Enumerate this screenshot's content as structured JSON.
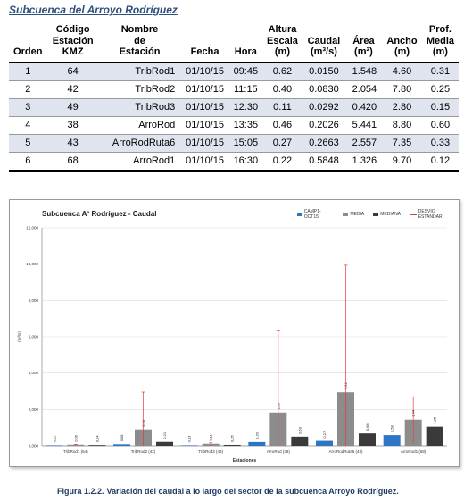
{
  "section_title": "Subcuenca del Arroyo Rodríguez",
  "table": {
    "headers": {
      "orden": "Orden",
      "codigo": [
        "Código",
        "Estación",
        "KMZ"
      ],
      "nombre": [
        "Nombre",
        "de",
        "Estación"
      ],
      "fecha": "Fecha",
      "hora": "Hora",
      "altura": [
        "Altura",
        "Escala",
        "(m)"
      ],
      "caudal": [
        "Caudal",
        "(m³/s)"
      ],
      "area": [
        "Área",
        "(m²)"
      ],
      "ancho": [
        "Ancho",
        "(m)"
      ],
      "prof": [
        "Prof.",
        "Media",
        "(m)"
      ]
    },
    "rows": [
      {
        "orden": "1",
        "codigo": "64",
        "nombre": "TribRod1",
        "fecha": "01/10/15",
        "hora": "09:45",
        "altura": "0.62",
        "caudal": "0.0150",
        "area": "1.548",
        "ancho": "4.60",
        "prof": "0.31"
      },
      {
        "orden": "2",
        "codigo": "42",
        "nombre": "TribRod2",
        "fecha": "01/10/15",
        "hora": "11:15",
        "altura": "0.40",
        "caudal": "0.0830",
        "area": "2.054",
        "ancho": "7.80",
        "prof": "0.25"
      },
      {
        "orden": "3",
        "codigo": "49",
        "nombre": "TribRod3",
        "fecha": "01/10/15",
        "hora": "12:30",
        "altura": "0.11",
        "caudal": "0.0292",
        "area": "0.420",
        "ancho": "2.80",
        "prof": "0.15"
      },
      {
        "orden": "4",
        "codigo": "38",
        "nombre": "ArroRod",
        "fecha": "01/10/15",
        "hora": "13:35",
        "altura": "0.46",
        "caudal": "0.2026",
        "area": "5.441",
        "ancho": "8.80",
        "prof": "0.60"
      },
      {
        "orden": "5",
        "codigo": "43",
        "nombre": "ArroRodRuta6",
        "fecha": "01/10/15",
        "hora": "15:05",
        "altura": "0.27",
        "caudal": "0.2663",
        "area": "2.557",
        "ancho": "7.35",
        "prof": "0.33"
      },
      {
        "orden": "6",
        "codigo": "68",
        "nombre": "ArroRod1",
        "fecha": "01/10/15",
        "hora": "16:30",
        "altura": "0.22",
        "caudal": "0.5848",
        "area": "1.326",
        "ancho": "9.70",
        "prof": "0.12"
      }
    ]
  },
  "chart_data": {
    "type": "bar",
    "title": "Subcuenca Aº Rodríguez - Caudal",
    "xlabel": "Estaciones",
    "ylabel": "(m³/s)",
    "ylim": [
      0,
      12
    ],
    "yticks": [
      "0,000",
      "2,000",
      "4,000",
      "6,000",
      "8,000",
      "10,000",
      "12,000"
    ],
    "grid": true,
    "legend_position": "top-right",
    "categories": [
      "TribRod1 (64)",
      "TribRod2 (42)",
      "TribRod3 (49)",
      "ArroRod (38)",
      "ArroRodRuta6 (43)",
      "ArroRod1 (68)"
    ],
    "series": [
      {
        "name": "CAMP1-OCT15",
        "color": "#2e75c6",
        "values": [
          0.015,
          0.083,
          0.029,
          0.203,
          0.266,
          0.585
        ],
        "labels": [
          "0,02",
          "0,08",
          "0,03",
          "0,20",
          "0,27",
          "0,58"
        ]
      },
      {
        "name": "MEDIA",
        "color": "#8c8c8c",
        "values": [
          0.06,
          0.9,
          0.11,
          1.83,
          2.94,
          1.44
        ],
        "labels": [
          "0,06",
          "0,90",
          "0,11",
          "1,83",
          "2,94",
          "1,44"
        ]
      },
      {
        "name": "MEDIANA",
        "color": "#3a3a3a",
        "values": [
          0.04,
          0.21,
          0.05,
          0.5,
          0.68,
          1.05
        ],
        "labels": [
          "0,04",
          "0,21",
          "0,05",
          "0,50",
          "0,68",
          "1,05"
        ]
      }
    ],
    "error_series": {
      "name": "DESVIO ESTANDAR",
      "color": "#e83a3a",
      "of_series": "MEDIA",
      "values": [
        0.02,
        2.05,
        0.05,
        4.5,
        7.0,
        1.25
      ]
    }
  },
  "caption": {
    "number": "Figura 1.2.2.",
    "text": "Variación del caudal a lo largo del sector de la subcuenca Arroyo Rodríguez."
  }
}
